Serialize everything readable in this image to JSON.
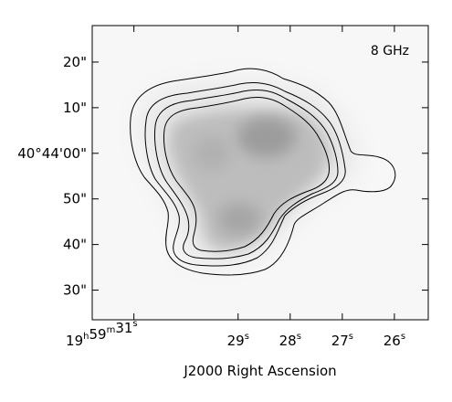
{
  "chart_data": {
    "type": "contour-image",
    "annotation": "8 GHz",
    "xlabel": "J2000 Right Ascension",
    "ylabel": "",
    "x_ticks": [
      {
        "h": "19",
        "m": "59",
        "s": "31",
        "main": "19",
        "sup1": "h",
        "mid": "59",
        "sup2": "m",
        "tail": "31",
        "sup3": "s",
        "ra_seconds": 31
      },
      {
        "s": "29",
        "main": "29",
        "sup3": "s",
        "ra_seconds": 29
      },
      {
        "s": "28",
        "main": "28",
        "sup3": "s",
        "ra_seconds": 28
      },
      {
        "s": "27",
        "main": "27",
        "sup3": "s",
        "ra_seconds": 27
      },
      {
        "s": "26",
        "main": "26",
        "sup3": "s",
        "ra_seconds": 26
      }
    ],
    "y_ticks": [
      {
        "label": "20\"",
        "dec_arcsec_offset": 20
      },
      {
        "label": "10\"",
        "dec_arcsec_offset": 10
      },
      {
        "label": "40°44'00\"",
        "dec_arcsec_offset": 0
      },
      {
        "label": "50\"",
        "dec_arcsec_offset": -10
      },
      {
        "label": "40\"",
        "dec_arcsec_offset": -20
      },
      {
        "label": "30\"",
        "dec_arcsec_offset": -30
      }
    ],
    "xlim": [
      31.8,
      25.35
    ],
    "ylim": [
      -36.5,
      28
    ],
    "contour_levels": 4,
    "colors": {
      "contour": "#000000",
      "frame": "#000000",
      "background": "#f7f7f7"
    }
  }
}
